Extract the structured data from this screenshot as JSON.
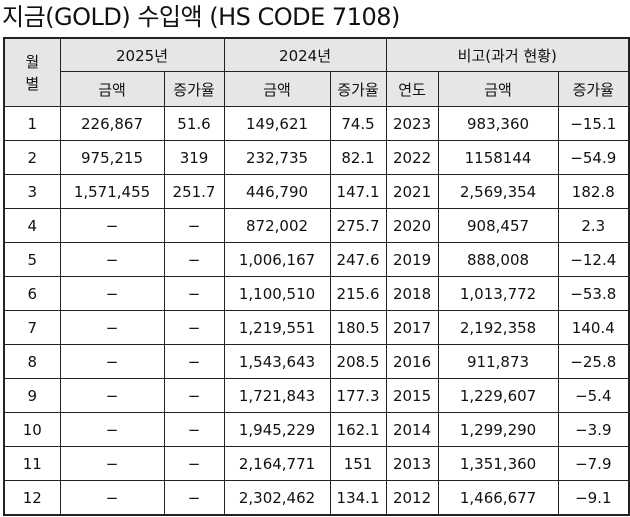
{
  "title": "지금(GOLD) 수입액 (HS CODE 7108)",
  "headers": {
    "month": "월별",
    "year2025": "2025년",
    "year2024": "2024년",
    "compare": "비고(과거 현황)",
    "amount": "금액",
    "growth": "증가율",
    "year": "연도"
  },
  "rows": [
    {
      "month": "1",
      "a2025": "226,867",
      "g2025": "51.6",
      "a2024": "149,621",
      "g2024": "74.5",
      "year": "2023",
      "ap": "983,360",
      "gp": "−15.1"
    },
    {
      "month": "2",
      "a2025": "975,215",
      "g2025": "319",
      "a2024": "232,735",
      "g2024": "82.1",
      "year": "2022",
      "ap": "1158144",
      "gp": "−54.9"
    },
    {
      "month": "3",
      "a2025": "1,571,455",
      "g2025": "251.7",
      "a2024": "446,790",
      "g2024": "147.1",
      "year": "2021",
      "ap": "2,569,354",
      "gp": "182.8"
    },
    {
      "month": "4",
      "a2025": "−",
      "g2025": "−",
      "a2024": "872,002",
      "g2024": "275.7",
      "year": "2020",
      "ap": "908,457",
      "gp": "2.3"
    },
    {
      "month": "5",
      "a2025": "−",
      "g2025": "−",
      "a2024": "1,006,167",
      "g2024": "247.6",
      "year": "2019",
      "ap": "888,008",
      "gp": "−12.4"
    },
    {
      "month": "6",
      "a2025": "−",
      "g2025": "−",
      "a2024": "1,100,510",
      "g2024": "215.6",
      "year": "2018",
      "ap": "1,013,772",
      "gp": "−53.8"
    },
    {
      "month": "7",
      "a2025": "−",
      "g2025": "−",
      "a2024": "1,219,551",
      "g2024": "180.5",
      "year": "2017",
      "ap": "2,192,358",
      "gp": "140.4"
    },
    {
      "month": "8",
      "a2025": "−",
      "g2025": "−",
      "a2024": "1,543,643",
      "g2024": "208.5",
      "year": "2016",
      "ap": "911,873",
      "gp": "−25.8"
    },
    {
      "month": "9",
      "a2025": "−",
      "g2025": "−",
      "a2024": "1,721,843",
      "g2024": "177.3",
      "year": "2015",
      "ap": "1,229,607",
      "gp": "−5.4"
    },
    {
      "month": "10",
      "a2025": "−",
      "g2025": "−",
      "a2024": "1,945,229",
      "g2024": "162.1",
      "year": "2014",
      "ap": "1,299,290",
      "gp": "−3.9"
    },
    {
      "month": "11",
      "a2025": "−",
      "g2025": "−",
      "a2024": "2,164,771",
      "g2024": "151",
      "year": "2013",
      "ap": "1,351,360",
      "gp": "−7.9"
    },
    {
      "month": "12",
      "a2025": "−",
      "g2025": "−",
      "a2024": "2,302,462",
      "g2024": "134.1",
      "year": "2012",
      "ap": "1,466,677",
      "gp": "−9.1"
    }
  ]
}
